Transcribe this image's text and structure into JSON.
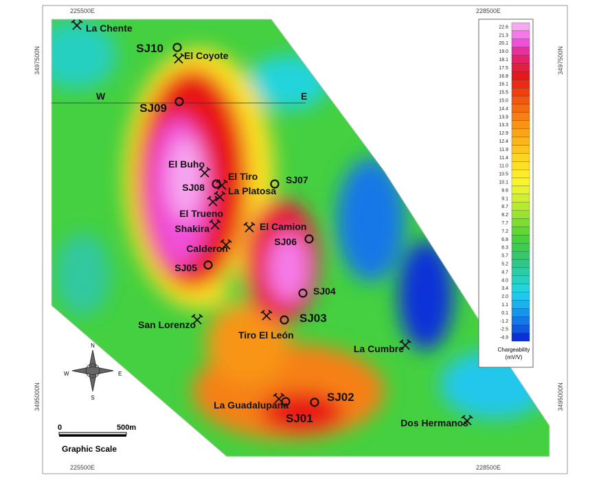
{
  "coordinates": {
    "top_left": "225500E",
    "top_right": "228500E",
    "bottom_left": "225500E",
    "bottom_right": "228500E",
    "left_top": "3497500N",
    "left_bottom": "3495000N",
    "right_top": "3497500N",
    "right_bottom": "3495000N"
  },
  "section": {
    "west": "W",
    "east": "E"
  },
  "drill_holes": [
    "SJ10",
    "SJ09",
    "SJ08",
    "SJ07",
    "SJ06",
    "SJ05",
    "SJ04",
    "SJ03",
    "SJ02",
    "SJ01"
  ],
  "mines": [
    "La Chente",
    "El Coyote",
    "El Buho",
    "El Tiro",
    "La Platosa",
    "El Trueno",
    "Shakira",
    "El Camion",
    "Calderon",
    "San Lorenzo",
    "Tiro El León",
    "La Cumbre",
    "La Guadalupana",
    "Dos Hermanos"
  ],
  "scale_bar": {
    "start": "0",
    "end": "500m",
    "title": "Graphic Scale"
  },
  "compass": {
    "n": "N",
    "s": "S",
    "e": "E",
    "w": "W"
  },
  "legend": {
    "title": "Chargeability",
    "unit": "(mV/V)",
    "labels": [
      "22.6",
      "21.3",
      "20.1",
      "19.0",
      "18.1",
      "17.5",
      "16.8",
      "16.1",
      "15.5",
      "15.0",
      "14.4",
      "13.9",
      "13.3",
      "12.9",
      "12.4",
      "11.9",
      "11.4",
      "11.0",
      "10.5",
      "10.1",
      "9.6",
      "9.1",
      "8.7",
      "8.2",
      "7.7",
      "7.2",
      "6.8",
      "6.3",
      "5.7",
      "5.2",
      "4.7",
      "4.0",
      "3.4",
      "2.0",
      "1.1",
      "0.1",
      "-1.2",
      "-2.5",
      "-4.9"
    ],
    "colors": [
      "#f7a8f0",
      "#f57ae8",
      "#f050d8",
      "#e8309c",
      "#e8206a",
      "#e81c40",
      "#e81818",
      "#ee2a14",
      "#f04010",
      "#f25810",
      "#f46c10",
      "#f68012",
      "#f89414",
      "#faa418",
      "#fab41c",
      "#fcc420",
      "#fcd424",
      "#fce028",
      "#fcec2c",
      "#f8f430",
      "#e4f430",
      "#cef030",
      "#b4ea30",
      "#98e430",
      "#7cde30",
      "#5ed832",
      "#48d23a",
      "#3ccc50",
      "#36c86a",
      "#30c888",
      "#2ccca4",
      "#28d0c0",
      "#24d4dc",
      "#20c8ec",
      "#1cb0ec",
      "#1894ea",
      "#1478e6",
      "#1058e0",
      "#0c30d8"
    ]
  }
}
